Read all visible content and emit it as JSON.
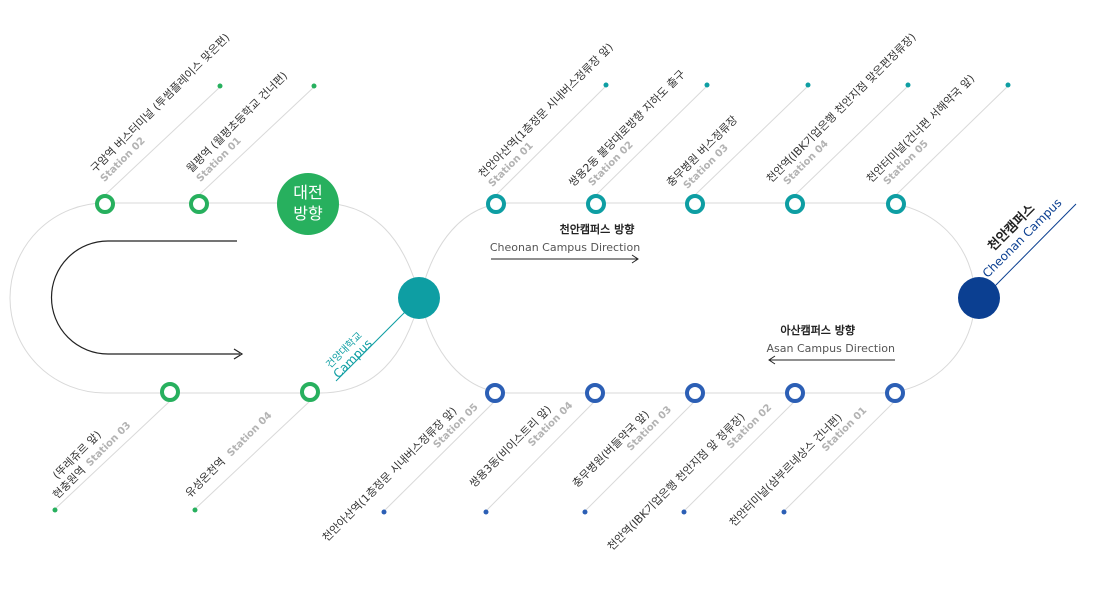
{
  "colors": {
    "green": "#27b05e",
    "teal": "#0e9ea3",
    "blue": "#2c5fb5",
    "navy": "#0b3f91",
    "track": "#d9d9d9"
  },
  "hubs": {
    "daejeon_line1": "대전",
    "daejeon_line2": "방향",
    "konyang_ko": "건양대학교",
    "konyang_en": "Campus",
    "cheonan_ko": "천안캠퍼스",
    "cheonan_en": "Cheonan Campus"
  },
  "directions": {
    "cheonan_ko": "천안캠퍼스 방향",
    "cheonan_en": "Cheonan Campus Direction",
    "asan_ko": "아산캠퍼스 방향",
    "asan_en": "Asan Campus Direction"
  },
  "daejeon_top": [
    {
      "name": "구암역 버스터미널 (투썸플레이스 맞은편)",
      "station": "Station 02"
    },
    {
      "name": "월평역 (월평초등학교 건너편)",
      "station": "Station 01"
    }
  ],
  "daejeon_bottom": [
    {
      "name": "현충원역",
      "note": "(뚜레쥬르 앞)",
      "station": "Station 03"
    },
    {
      "name": "유성온천역",
      "station": "Station 04"
    }
  ],
  "cheonan_top": [
    {
      "name": "천안아산역(1층정문 시내버스정류장 앞)",
      "station": "Station 01"
    },
    {
      "name": "쌍용2동 불당대로방향 지하도 출구",
      "station": "Station 02"
    },
    {
      "name": "충무병원 버스정류장",
      "station": "Station 03"
    },
    {
      "name": "천안역(IBK기업은행 천안지점 맞은편정류장)",
      "station": "Station 04"
    },
    {
      "name": "천안터미널(건너편 서해약국 앞)",
      "station": "Station 05"
    }
  ],
  "asan_bottom": [
    {
      "name": "천안아산역(1층정문 시내버스정류장 앞)",
      "station": "Station 05"
    },
    {
      "name": "쌍용3동(비이스트리 앞)",
      "station": "Station 04"
    },
    {
      "name": "충무병원(버들약국 앞)",
      "station": "Station 03"
    },
    {
      "name": "천안역(IBK기업은행 천안지점 앞 정류장)",
      "station": "Station 02"
    },
    {
      "name": "천안터미널(삼부르네상스 건너편)",
      "station": "Station 01"
    }
  ]
}
